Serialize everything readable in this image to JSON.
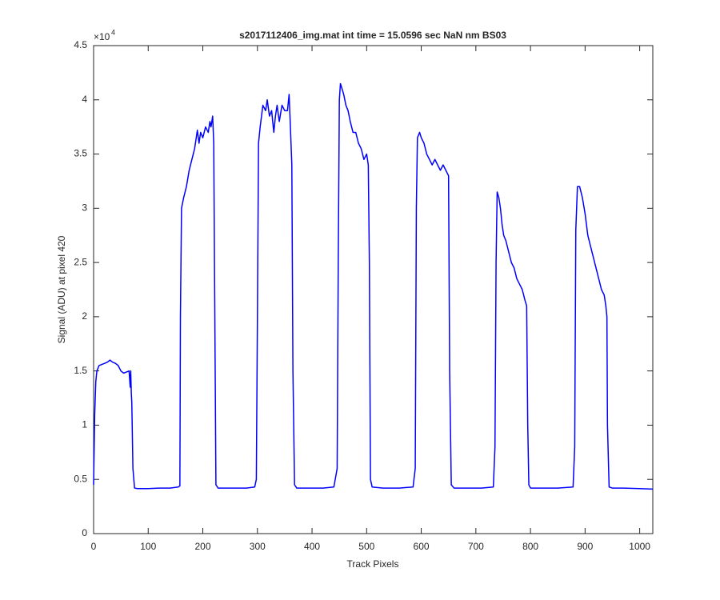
{
  "chart_data": {
    "type": "line",
    "title": "s2017112406_img.mat int time = 15.0596 sec  NaN nm BS03",
    "x_label": "Track Pixels",
    "y_label": "Signal (ADU) at pixel 420",
    "y_scale_base": "×10",
    "y_scale_exponent": "4",
    "color": "#0000ff",
    "xlim": [
      0,
      1024
    ],
    "xticks": [
      0,
      100,
      200,
      300,
      400,
      500,
      600,
      700,
      800,
      900,
      1000
    ],
    "ylim": [
      0,
      4.5
    ],
    "yticks": [
      0,
      0.5,
      1,
      1.5,
      2,
      2.5,
      3,
      3.5,
      4,
      4.5
    ],
    "x": [
      0,
      2,
      4,
      6,
      10,
      15,
      20,
      25,
      30,
      35,
      40,
      45,
      50,
      55,
      60,
      65,
      67,
      68,
      69,
      70,
      72,
      75,
      80,
      100,
      120,
      140,
      155,
      158,
      159,
      161,
      165,
      170,
      175,
      180,
      185,
      190,
      193,
      196,
      200,
      205,
      210,
      213,
      215,
      218,
      220,
      222,
      224,
      228,
      240,
      260,
      280,
      295,
      298,
      300,
      302,
      305,
      310,
      315,
      318,
      322,
      326,
      330,
      333,
      336,
      340,
      345,
      350,
      355,
      358,
      360,
      363,
      365,
      368,
      372,
      390,
      420,
      440,
      446,
      448,
      450,
      452,
      455,
      458,
      462,
      466,
      470,
      475,
      480,
      485,
      490,
      495,
      500,
      503,
      505,
      507,
      510,
      530,
      560,
      585,
      589,
      591,
      593,
      597,
      600,
      605,
      610,
      615,
      620,
      625,
      630,
      635,
      640,
      645,
      650,
      652,
      655,
      660,
      680,
      710,
      732,
      735,
      737,
      739,
      742,
      745,
      748,
      751,
      755,
      760,
      765,
      770,
      775,
      780,
      785,
      790,
      793,
      795,
      797,
      800,
      820,
      850,
      878,
      881,
      883,
      886,
      890,
      895,
      900,
      905,
      910,
      915,
      920,
      925,
      930,
      935,
      938,
      940,
      941,
      944,
      950,
      970,
      1000,
      1024
    ],
    "values": [
      0.45,
      1.1,
      1.4,
      1.5,
      1.55,
      1.56,
      1.57,
      1.58,
      1.6,
      1.58,
      1.57,
      1.55,
      1.5,
      1.48,
      1.49,
      1.5,
      1.35,
      1.5,
      1.3,
      1.2,
      0.6,
      0.42,
      0.415,
      0.415,
      0.42,
      0.42,
      0.43,
      0.44,
      2.0,
      3.0,
      3.1,
      3.2,
      3.35,
      3.45,
      3.55,
      3.72,
      3.6,
      3.7,
      3.65,
      3.75,
      3.7,
      3.8,
      3.75,
      3.85,
      3.6,
      2.0,
      0.45,
      0.42,
      0.42,
      0.42,
      0.42,
      0.43,
      0.5,
      2.0,
      3.6,
      3.75,
      3.95,
      3.9,
      4.0,
      3.85,
      3.9,
      3.7,
      3.85,
      3.95,
      3.8,
      3.95,
      3.9,
      3.9,
      4.05,
      3.8,
      3.4,
      1.5,
      0.45,
      0.42,
      0.42,
      0.42,
      0.43,
      0.6,
      2.5,
      4.0,
      4.15,
      4.1,
      4.05,
      3.95,
      3.9,
      3.8,
      3.7,
      3.7,
      3.6,
      3.55,
      3.45,
      3.5,
      3.4,
      2.5,
      0.5,
      0.43,
      0.42,
      0.42,
      0.43,
      0.6,
      3.0,
      3.65,
      3.7,
      3.65,
      3.6,
      3.5,
      3.45,
      3.4,
      3.45,
      3.4,
      3.35,
      3.4,
      3.35,
      3.3,
      1.5,
      0.45,
      0.42,
      0.42,
      0.42,
      0.43,
      0.8,
      2.5,
      3.15,
      3.1,
      3.0,
      2.85,
      2.75,
      2.7,
      2.6,
      2.5,
      2.45,
      2.35,
      2.3,
      2.25,
      2.15,
      2.1,
      1.0,
      0.45,
      0.42,
      0.42,
      0.42,
      0.43,
      0.8,
      2.8,
      3.2,
      3.2,
      3.1,
      2.95,
      2.75,
      2.65,
      2.55,
      2.45,
      2.35,
      2.25,
      2.2,
      2.1,
      2.0,
      1.0,
      0.43,
      0.42,
      0.42,
      0.415,
      0.41
    ]
  }
}
